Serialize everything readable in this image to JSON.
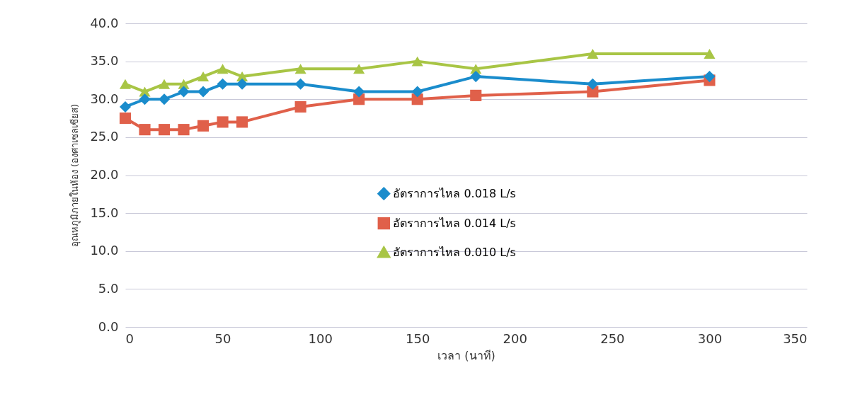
{
  "chart_data": {
    "type": "line",
    "xlabel": "เวลา (นาที)",
    "ylabel": "อุณหภูมิภายในห้อง (องศาเซลเซียส)",
    "x": [
      0,
      10,
      20,
      30,
      40,
      50,
      60,
      90,
      120,
      150,
      180,
      240,
      300
    ],
    "series": [
      {
        "name": "อัตราการไหล 0.018 L/s",
        "color": "#1a8ccc",
        "marker": "diamond",
        "values": [
          29,
          30,
          30,
          31,
          31,
          32,
          32,
          32,
          31,
          31,
          33,
          32,
          33
        ]
      },
      {
        "name": "อัตราการไหล 0.014 L/s",
        "color": "#e0604a",
        "marker": "square",
        "values": [
          27.5,
          26,
          26,
          26,
          26.5,
          27,
          27,
          29,
          30,
          30,
          30.5,
          31,
          32.5
        ]
      },
      {
        "name": "อัตราการไหล 0.010 L/s",
        "color": "#a8c545",
        "marker": "triangle",
        "values": [
          32,
          31,
          32,
          32,
          33,
          34,
          33,
          34,
          34,
          35,
          34,
          36,
          36
        ]
      }
    ],
    "xlim": [
      0,
      350
    ],
    "xticks": [
      0,
      50,
      100,
      150,
      200,
      250,
      300,
      350
    ],
    "ylim": [
      0,
      40
    ],
    "yticks": [
      {
        "value": 0,
        "label": "0.0"
      },
      {
        "value": 5,
        "label": "5.0"
      },
      {
        "value": 10,
        "label": "10.0"
      },
      {
        "value": 15,
        "label": "15.0"
      },
      {
        "value": 20,
        "label": "20.0"
      },
      {
        "value": 25,
        "label": "25.0"
      },
      {
        "value": 30,
        "label": "30.0"
      },
      {
        "value": 35,
        "label": "35.0"
      },
      {
        "value": 40,
        "label": "40.0"
      }
    ],
    "grid": "y",
    "legend": "center"
  }
}
